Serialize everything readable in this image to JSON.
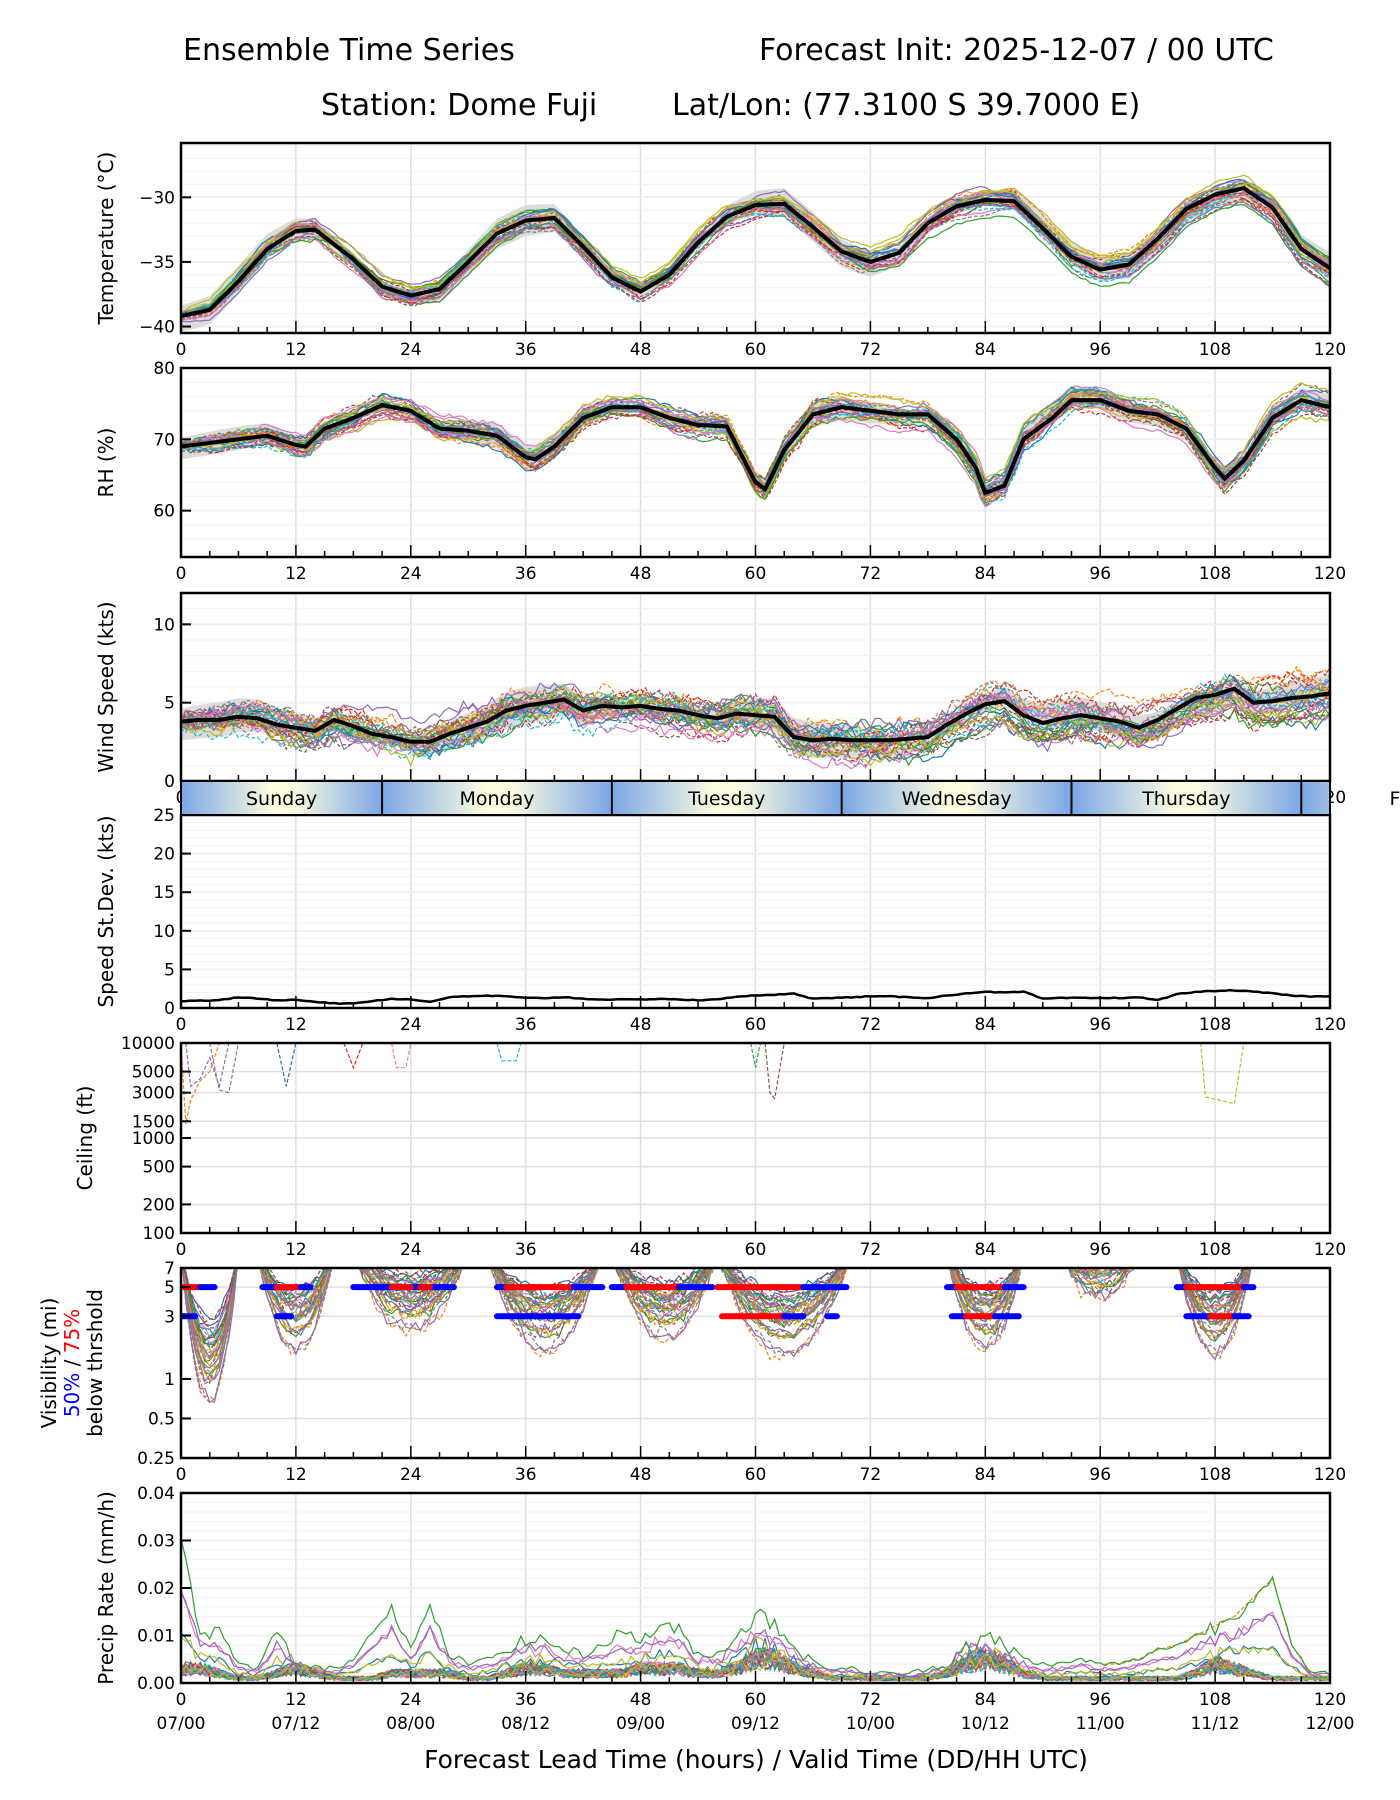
{
  "header": {
    "title_left": "Ensemble Time Series",
    "title_right": "Forecast Init: 2025-12-07 / 00 UTC",
    "station": "Station: Dome Fuji",
    "latlon": "Lat/Lon: (77.3100 S 39.7000 E)"
  },
  "colors": {
    "mean": "#000000",
    "spread": "#d3d3d3",
    "grid": "#e0e0e0",
    "vis_50": "#0000ff",
    "vis_75": "#ff0000",
    "members": [
      "#1f77b4",
      "#ff7f0e",
      "#2ca02c",
      "#d62728",
      "#9467bd",
      "#8c564b",
      "#e377c2",
      "#7f7f7f",
      "#bcbd22",
      "#17becf"
    ],
    "day_band_edge": "#7aa6e6",
    "day_band_center": "#fdfde0"
  },
  "xaxis": {
    "label": "Forecast Lead Time (hours) / Valid Time (DD/HH UTC)",
    "range": [
      0,
      120
    ],
    "ticks": [
      0,
      12,
      24,
      36,
      48,
      60,
      72,
      84,
      96,
      108,
      120
    ],
    "valid_times": [
      "07/00",
      "07/12",
      "08/00",
      "08/12",
      "09/00",
      "09/12",
      "10/00",
      "10/12",
      "11/00",
      "11/12",
      "12/00"
    ]
  },
  "day_band": {
    "days": [
      {
        "label": "Sunday",
        "start": 0,
        "end": 21
      },
      {
        "label": "Monday",
        "start": 21,
        "end": 45
      },
      {
        "label": "Tuesday",
        "start": 45,
        "end": 69
      },
      {
        "label": "Wednesday",
        "start": 69,
        "end": 93
      },
      {
        "label": "Thursday",
        "start": 93,
        "end": 117
      },
      {
        "label": "F",
        "start": 117,
        "end": 141
      }
    ]
  },
  "chart_data": [
    {
      "type": "line",
      "id": "temperature",
      "ylabel": "Temperature (°C)",
      "ylim": [
        -40.5,
        -25.8
      ],
      "yticks": [
        -40,
        -35,
        -30
      ],
      "ytick_labels": [
        "−40",
        "−35",
        "−30"
      ],
      "grid": true,
      "x": [
        0,
        3,
        6,
        9,
        12,
        14,
        18,
        21,
        24,
        27,
        30,
        33,
        36,
        39,
        42,
        45,
        48,
        51,
        54,
        57,
        60,
        63,
        66,
        69,
        72,
        75,
        78,
        81,
        84,
        87,
        90,
        93,
        96,
        99,
        102,
        105,
        108,
        111,
        114,
        117,
        120
      ],
      "mean": [
        -39.2,
        -38.7,
        -36.5,
        -34.0,
        -32.6,
        -32.5,
        -34.8,
        -36.9,
        -37.6,
        -37.1,
        -35.0,
        -32.8,
        -31.8,
        -31.6,
        -33.8,
        -36.2,
        -37.3,
        -36.0,
        -33.5,
        -31.5,
        -30.6,
        -30.5,
        -32.3,
        -34.2,
        -35.0,
        -34.3,
        -32.0,
        -30.7,
        -30.2,
        -30.3,
        -32.4,
        -34.6,
        -35.6,
        -35.2,
        -33.2,
        -30.9,
        -29.8,
        -29.3,
        -30.8,
        -34.0,
        -35.5
      ],
      "spread": 0.8
    },
    {
      "type": "line",
      "id": "rh",
      "ylabel": "RH (%)",
      "ylim": [
        53.5,
        80
      ],
      "yticks": [
        60,
        70,
        80
      ],
      "grid": true,
      "x": [
        0,
        3,
        6,
        9,
        12,
        13,
        15,
        18,
        21,
        24,
        27,
        30,
        33,
        36,
        37,
        39,
        42,
        45,
        48,
        51,
        54,
        57,
        60,
        61,
        63,
        66,
        69,
        72,
        75,
        78,
        81,
        83,
        84,
        86,
        88,
        91,
        93,
        96,
        99,
        102,
        105,
        108,
        109,
        111,
        114,
        117,
        120
      ],
      "mean": [
        69.0,
        69.5,
        70.0,
        70.5,
        69.2,
        69.0,
        71.5,
        73.0,
        74.8,
        74.0,
        71.5,
        71.2,
        70.5,
        67.5,
        67.2,
        69.0,
        73.0,
        74.5,
        74.5,
        73.0,
        72.0,
        71.8,
        64.0,
        63.0,
        68.5,
        73.5,
        74.5,
        74.0,
        73.5,
        73.5,
        70.0,
        66.0,
        62.5,
        63.5,
        70.0,
        73.0,
        75.5,
        75.5,
        74.0,
        73.5,
        71.5,
        66.0,
        64.5,
        67.0,
        73.0,
        75.5,
        74.5
      ],
      "spread": 1.2
    },
    {
      "type": "line",
      "id": "wind_speed",
      "ylabel": "Wind Speed (kts)",
      "ylim": [
        0,
        12
      ],
      "yticks": [
        0,
        5,
        10
      ],
      "grid": true,
      "x": [
        0,
        2,
        4,
        6,
        8,
        10,
        12,
        14,
        16,
        18,
        20,
        22,
        24,
        26,
        28,
        30,
        32,
        34,
        36,
        38,
        40,
        42,
        44,
        46,
        48,
        50,
        52,
        54,
        56,
        58,
        60,
        62,
        64,
        66,
        68,
        70,
        72,
        74,
        76,
        78,
        80,
        82,
        84,
        86,
        88,
        90,
        92,
        94,
        96,
        98,
        100,
        102,
        104,
        106,
        108,
        110,
        112,
        114,
        116,
        118,
        120
      ],
      "mean": [
        3.8,
        3.9,
        3.9,
        4.1,
        4.0,
        3.6,
        3.4,
        3.2,
        3.9,
        3.5,
        3.0,
        2.8,
        2.5,
        2.5,
        3.0,
        3.4,
        3.8,
        4.5,
        4.8,
        5.0,
        5.2,
        4.5,
        4.8,
        4.7,
        4.8,
        4.6,
        4.5,
        4.2,
        4.0,
        4.3,
        4.2,
        4.1,
        2.8,
        2.6,
        2.7,
        2.6,
        2.6,
        2.6,
        2.7,
        2.8,
        3.6,
        4.3,
        4.9,
        5.1,
        4.2,
        3.7,
        4.0,
        4.2,
        4.0,
        3.8,
        3.4,
        3.9,
        4.6,
        5.3,
        5.5,
        5.9,
        5.0,
        5.1,
        5.3,
        5.4,
        5.6
      ],
      "spread": 0.8
    },
    {
      "type": "line",
      "id": "speed_stdev",
      "ylabel": "Speed St.Dev. (kts)",
      "ylim": [
        0,
        25
      ],
      "yticks": [
        0,
        5,
        10,
        15,
        20,
        25
      ],
      "grid": true,
      "x": [
        0,
        4,
        6,
        8,
        10,
        12,
        14,
        16,
        18,
        20,
        22,
        24,
        26,
        28,
        30,
        32,
        34,
        36,
        38,
        40,
        42,
        44,
        46,
        48,
        50,
        52,
        54,
        56,
        58,
        60,
        62,
        64,
        66,
        68,
        70,
        72,
        74,
        76,
        78,
        80,
        82,
        84,
        86,
        88,
        90,
        92,
        94,
        96,
        98,
        100,
        102,
        104,
        106,
        108,
        110,
        112,
        114,
        116,
        118,
        120
      ],
      "mean": [
        0.9,
        1.0,
        1.4,
        1.2,
        1.0,
        1.1,
        0.8,
        0.6,
        0.6,
        0.9,
        1.2,
        1.1,
        0.8,
        1.4,
        1.5,
        1.6,
        1.5,
        1.3,
        1.3,
        1.4,
        1.2,
        1.1,
        1.1,
        1.1,
        1.2,
        1.1,
        1.0,
        1.1,
        1.5,
        1.6,
        1.7,
        1.9,
        1.2,
        1.3,
        1.4,
        1.5,
        1.5,
        1.4,
        1.3,
        1.6,
        1.9,
        2.1,
        2.0,
        2.1,
        1.2,
        1.3,
        1.3,
        1.3,
        1.3,
        1.4,
        1.0,
        1.8,
        2.1,
        2.2,
        2.3,
        2.1,
        1.9,
        1.6,
        1.5,
        1.5
      ]
    },
    {
      "type": "line",
      "id": "ceiling",
      "ylabel": "Ceiling (ft)",
      "yscale": "log",
      "ylim": [
        100,
        10000
      ],
      "yticks": [
        100,
        200,
        500,
        1000,
        1500,
        3000,
        5000,
        10000
      ],
      "grid": true,
      "note": "Ensemble member ceiling traces appear only where below 10000 ft",
      "member_dips": [
        {
          "x": [
            0,
            0.5,
            1,
            2,
            3,
            4
          ],
          "y": [
            10000,
            1400,
            2500,
            4000,
            5000,
            10000
          ]
        },
        {
          "x": [
            0.5,
            1,
            2,
            3,
            4,
            5
          ],
          "y": [
            10000,
            3500,
            4200,
            7000,
            3500,
            10000
          ]
        },
        {
          "x": [
            3,
            4,
            5,
            6
          ],
          "y": [
            10000,
            3200,
            3000,
            10000
          ]
        },
        {
          "x": [
            10,
            11,
            12
          ],
          "y": [
            10000,
            3500,
            10000
          ]
        },
        {
          "x": [
            17,
            18,
            19
          ],
          "y": [
            10000,
            5500,
            10000
          ]
        },
        {
          "x": [
            22,
            22.5,
            23.5,
            24
          ],
          "y": [
            10000,
            5500,
            5500,
            10000
          ]
        },
        {
          "x": [
            33,
            33.5,
            35,
            35.5
          ],
          "y": [
            10000,
            6500,
            6500,
            10000
          ]
        },
        {
          "x": [
            59.5,
            60,
            60.5
          ],
          "y": [
            10000,
            5500,
            10000
          ]
        },
        {
          "x": [
            61,
            61.5,
            62,
            63
          ],
          "y": [
            10000,
            3000,
            2600,
            10000
          ]
        },
        {
          "x": [
            106.5,
            107,
            110,
            111
          ],
          "y": [
            10000,
            2700,
            2300,
            10000
          ]
        }
      ]
    },
    {
      "type": "line",
      "id": "visibility",
      "ylabel_lines": [
        "Visibility (mi)",
        "50% / 75%",
        "below thrshold"
      ],
      "ylabel_50": "50%",
      "ylabel_sep": " / ",
      "ylabel_75": "75%",
      "yscale": "log",
      "ylim": [
        0.25,
        7
      ],
      "yticks": [
        0.25,
        0.5,
        1,
        3,
        5,
        7
      ],
      "grid": true,
      "threshold_bars": [
        {
          "level": 5,
          "color": "red",
          "start": 0,
          "end": 2
        },
        {
          "level": 5,
          "color": "blue",
          "start": 2,
          "end": 3.5
        },
        {
          "level": 5,
          "color": "blue",
          "start": 8.5,
          "end": 10
        },
        {
          "level": 5,
          "color": "red",
          "start": 10,
          "end": 12.5
        },
        {
          "level": 5,
          "color": "blue",
          "start": 12.5,
          "end": 13.5
        },
        {
          "level": 5,
          "color": "blue",
          "start": 18,
          "end": 28.5
        },
        {
          "level": 5,
          "color": "red",
          "start": 22,
          "end": 24
        },
        {
          "level": 5,
          "color": "red",
          "start": 25,
          "end": 26
        },
        {
          "level": 5,
          "color": "blue",
          "start": 33,
          "end": 34
        },
        {
          "level": 5,
          "color": "red",
          "start": 34,
          "end": 41
        },
        {
          "level": 5,
          "color": "blue",
          "start": 41,
          "end": 44
        },
        {
          "level": 5,
          "color": "blue",
          "start": 45,
          "end": 46.5
        },
        {
          "level": 5,
          "color": "red",
          "start": 46.5,
          "end": 52
        },
        {
          "level": 5,
          "color": "blue",
          "start": 52,
          "end": 55.5
        },
        {
          "level": 5,
          "color": "red",
          "start": 56,
          "end": 65
        },
        {
          "level": 5,
          "color": "blue",
          "start": 65,
          "end": 69.5
        },
        {
          "level": 3,
          "color": "blue",
          "start": 0,
          "end": 1.5
        },
        {
          "level": 3,
          "color": "blue",
          "start": 10,
          "end": 11.5
        },
        {
          "level": 3,
          "color": "blue",
          "start": 33,
          "end": 41.5
        },
        {
          "level": 3,
          "color": "red",
          "start": 56.5,
          "end": 63
        },
        {
          "level": 3,
          "color": "blue",
          "start": 63,
          "end": 65
        },
        {
          "level": 3,
          "color": "blue",
          "start": 67.5,
          "end": 68.5
        },
        {
          "level": 5,
          "color": "blue",
          "start": 80,
          "end": 81
        },
        {
          "level": 5,
          "color": "red",
          "start": 81,
          "end": 86
        },
        {
          "level": 5,
          "color": "blue",
          "start": 86,
          "end": 88
        },
        {
          "level": 3,
          "color": "blue",
          "start": 80.5,
          "end": 82
        },
        {
          "level": 3,
          "color": "red",
          "start": 82,
          "end": 85
        },
        {
          "level": 3,
          "color": "blue",
          "start": 85,
          "end": 87.5
        },
        {
          "level": 5,
          "color": "blue",
          "start": 104,
          "end": 105
        },
        {
          "level": 5,
          "color": "red",
          "start": 105,
          "end": 111
        },
        {
          "level": 5,
          "color": "blue",
          "start": 111,
          "end": 112
        },
        {
          "level": 3,
          "color": "blue",
          "start": 105,
          "end": 107.5
        },
        {
          "level": 3,
          "color": "red",
          "start": 107.5,
          "end": 110
        },
        {
          "level": 3,
          "color": "blue",
          "start": 110,
          "end": 111.5
        }
      ],
      "dip_windows": [
        [
          0,
          6
        ],
        [
          8,
          16
        ],
        [
          18,
          30
        ],
        [
          32,
          44
        ],
        [
          45,
          56
        ],
        [
          56,
          70
        ],
        [
          80,
          88
        ],
        [
          92,
          100
        ],
        [
          104,
          112
        ]
      ],
      "dip_minimum": [
        0.3,
        0.8,
        1.2,
        0.8,
        1.0,
        0.75,
        0.85,
        2.2,
        0.75
      ]
    },
    {
      "type": "line",
      "id": "precip_rate",
      "ylabel": "Precip Rate (mm/h)",
      "ylim": [
        0,
        0.04
      ],
      "yticks": [
        0.0,
        0.01,
        0.02,
        0.03,
        0.04
      ],
      "ytick_labels": [
        "0.00",
        "0.01",
        "0.02",
        "0.03",
        "0.04"
      ],
      "grid": true,
      "x": [
        0,
        2,
        4,
        6,
        8,
        10,
        12,
        14,
        16,
        18,
        20,
        22,
        24,
        26,
        28,
        30,
        32,
        34,
        36,
        38,
        40,
        42,
        44,
        46,
        48,
        50,
        52,
        54,
        56,
        58,
        60,
        62,
        64,
        66,
        68,
        70,
        72,
        74,
        76,
        78,
        80,
        82,
        84,
        86,
        88,
        90,
        92,
        94,
        96,
        98,
        100,
        102,
        104,
        106,
        108,
        110,
        112,
        114,
        116,
        118,
        120
      ],
      "typical": [
        0.003,
        0.003,
        0.002,
        0.001,
        0.001,
        0.002,
        0.003,
        0.002,
        0.001,
        0.001,
        0.001,
        0.002,
        0.002,
        0.002,
        0.002,
        0.001,
        0.001,
        0.002,
        0.003,
        0.003,
        0.002,
        0.002,
        0.002,
        0.002,
        0.003,
        0.003,
        0.003,
        0.002,
        0.002,
        0.003,
        0.005,
        0.005,
        0.003,
        0.002,
        0.001,
        0.001,
        0.001,
        0.001,
        0.001,
        0.001,
        0.002,
        0.004,
        0.005,
        0.004,
        0.002,
        0.001,
        0.001,
        0.001,
        0.001,
        0.001,
        0.001,
        0.001,
        0.001,
        0.002,
        0.004,
        0.003,
        0.002,
        0.001,
        0.001,
        0.001,
        0.001
      ],
      "outlier_max": [
        0.03,
        0.01,
        0.011,
        0.004,
        0.003,
        0.011,
        0.004,
        0.003,
        0.003,
        0.005,
        0.011,
        0.016,
        0.007,
        0.016,
        0.006,
        0.004,
        0.005,
        0.007,
        0.009,
        0.009,
        0.007,
        0.006,
        0.008,
        0.011,
        0.009,
        0.012,
        0.011,
        0.006,
        0.006,
        0.01,
        0.014,
        0.013,
        0.008,
        0.004,
        0.003,
        0.003,
        0.002,
        0.002,
        0.002,
        0.003,
        0.004,
        0.008,
        0.009,
        0.008,
        0.005,
        0.004,
        0.004,
        0.005,
        0.004,
        0.004,
        0.005,
        0.007,
        0.008,
        0.01,
        0.012,
        0.014,
        0.018,
        0.022,
        0.008,
        0.002,
        0.002
      ]
    }
  ]
}
